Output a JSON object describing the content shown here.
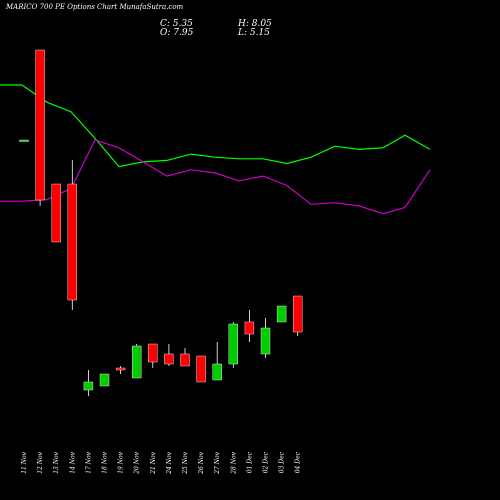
{
  "chart_data": {
    "type": "candlestick",
    "title": "MARICO 700  PE Options  Chart MunafaSutra.com",
    "ohlc_labels": {
      "close": "C: 5.35",
      "high": "H: 8.05",
      "open": "O: 7.95",
      "low": "L: 5.15"
    },
    "categories": [
      "11 Nov",
      "12 Nov",
      "13 Nov",
      "14 Nov",
      "17 Nov",
      "18 Nov",
      "19 Nov",
      "20 Nov",
      "21 Nov",
      "24 Nov",
      "25 Nov",
      "26 Nov",
      "27 Nov",
      "28 Nov",
      "01 Dec",
      "02 Dec",
      "03 Dec",
      "04 Dec"
    ],
    "price_range": [
      0,
      30
    ],
    "candles": [
      {
        "open": 23.0,
        "high": 23.0,
        "low": 23.0,
        "close": 23.0,
        "color": "#00cc00"
      },
      {
        "open": 27.5,
        "high": 27.5,
        "low": 19.7,
        "close": 20.0,
        "color": "#ff0000"
      },
      {
        "open": 20.8,
        "high": 20.8,
        "low": 17.9,
        "close": 17.9,
        "color": "#ff0000"
      },
      {
        "open": 20.8,
        "high": 22.0,
        "low": 14.5,
        "close": 15.0,
        "color": "#ff0000"
      },
      {
        "open": 10.5,
        "high": 11.5,
        "low": 10.2,
        "close": 10.9,
        "color": "#00cc00"
      },
      {
        "open": 10.7,
        "high": 11.3,
        "low": 10.7,
        "close": 11.3,
        "color": "#00cc00"
      },
      {
        "open": 11.5,
        "high": 11.7,
        "low": 11.3,
        "close": 11.6,
        "color": "#ff0000"
      },
      {
        "open": 11.1,
        "high": 12.8,
        "low": 11.1,
        "close": 12.7,
        "color": "#00cc00"
      },
      {
        "open": 12.8,
        "high": 12.8,
        "low": 11.6,
        "close": 11.9,
        "color": "#ff0000"
      },
      {
        "open": 12.3,
        "high": 12.8,
        "low": 11.7,
        "close": 11.8,
        "color": "#ff0000"
      },
      {
        "open": 12.3,
        "high": 12.6,
        "low": 11.7,
        "close": 11.7,
        "color": "#ff0000"
      },
      {
        "open": 12.2,
        "high": 12.2,
        "low": 10.9,
        "close": 10.9,
        "color": "#ff0000"
      },
      {
        "open": 11.0,
        "high": 12.9,
        "low": 11.0,
        "close": 11.8,
        "color": "#00cc00"
      },
      {
        "open": 11.8,
        "high": 13.9,
        "low": 11.6,
        "close": 13.8,
        "color": "#00cc00"
      },
      {
        "open": 13.9,
        "high": 14.5,
        "low": 12.9,
        "close": 13.3,
        "color": "#ff0000"
      },
      {
        "open": 12.3,
        "high": 14.1,
        "low": 12.1,
        "close": 13.6,
        "color": "#00cc00"
      },
      {
        "open": 13.9,
        "high": 14.7,
        "low": 13.9,
        "close": 14.7,
        "color": "#00cc00"
      },
      {
        "open": 15.2,
        "high": 15.2,
        "low": 13.2,
        "close": 13.4,
        "color": "#ff0000"
      }
    ],
    "overlay_lines": [
      {
        "color": "#00ff00",
        "values": [
          36.0,
          36.0,
          34.9,
          34.3,
          32.6,
          30.8,
          31.1,
          31.2,
          31.6,
          31.4,
          31.3,
          31.3,
          31.0,
          31.4,
          32.1,
          31.9,
          32.0,
          32.8,
          31.9
        ]
      },
      {
        "color": "#cc00cc",
        "values": [
          28.6,
          28.6,
          28.7,
          29.4,
          32.5,
          32.0,
          31.1,
          30.2,
          30.6,
          30.4,
          29.9,
          30.2,
          29.6,
          28.4,
          28.5,
          28.3,
          27.8,
          28.2,
          30.6
        ]
      }
    ],
    "overlay_x": [
      0,
      22,
      47,
      71,
      95,
      119,
      143,
      167,
      191,
      215,
      239,
      263,
      287,
      311,
      335,
      359,
      383,
      405,
      430
    ]
  }
}
